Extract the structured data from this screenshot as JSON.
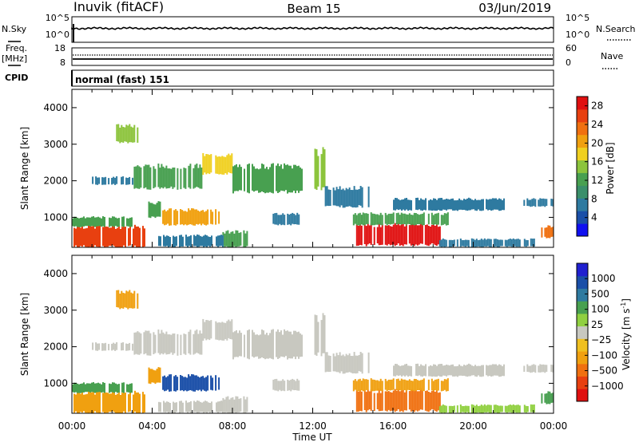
{
  "header": {
    "station": "Inuvik (fitACF)",
    "beam": "Beam 15",
    "date": "03/Jun/2019"
  },
  "params": {
    "nsky_label": "N.Sky",
    "nsky_ticks": [
      "10^5",
      "10^0"
    ],
    "nsearch_label": "N.Search",
    "nsearch_ticks": [
      "10^5",
      "10^0"
    ],
    "freq_label_1": "Freq.",
    "freq_label_2": "[MHz]",
    "freq_ticks": [
      "18",
      "8"
    ],
    "nave_label": "Nave",
    "nave_ticks": [
      "60",
      "0"
    ],
    "cpid_label": "CPID",
    "cpid_value": "normal (fast) 151"
  },
  "colors": {
    "power_scale": [
      "#1010f0",
      "#1a4fa8",
      "#2e7aa0",
      "#3a8f6a",
      "#48a050",
      "#8cc43c",
      "#f0d020",
      "#f0a010",
      "#f07010",
      "#e84010",
      "#e01010"
    ],
    "velocity_scale": [
      "#e01010",
      "#e84010",
      "#f07010",
      "#f0a010",
      "#f0c020",
      "#c8c8c0",
      "#90d040",
      "#48a050",
      "#2e7aa0",
      "#1a4fa8",
      "#2020d0"
    ],
    "ground_scatter": "#c8c8c0"
  },
  "chart_data": [
    {
      "type": "heatmap",
      "panel": "power",
      "xlabel": "Time UT",
      "ylabel": "Slant Range [km]",
      "x_ticks": [
        "00:00",
        "04:00",
        "08:00",
        "12:00",
        "16:00",
        "20:00",
        "00:00"
      ],
      "x_range_hours": [
        0,
        24
      ],
      "y_ticks": [
        1000,
        2000,
        3000,
        4000
      ],
      "ylim": [
        180,
        4500
      ],
      "colorbar": {
        "label": "Power [dB]",
        "ticks": [
          4,
          8,
          12,
          16,
          20,
          24,
          28
        ],
        "range": [
          0,
          30
        ]
      },
      "regions": [
        {
          "t0": 0.0,
          "t1": 3.6,
          "r0": 200,
          "r1": 750,
          "level": 27
        },
        {
          "t0": 0.0,
          "t1": 3.0,
          "r0": 750,
          "r1": 1000,
          "level": 13
        },
        {
          "t0": 2.2,
          "t1": 3.3,
          "r0": 3050,
          "r1": 3500,
          "level": 15
        },
        {
          "t0": 1.0,
          "t1": 3.0,
          "r0": 1900,
          "r1": 2100,
          "level": 7
        },
        {
          "t0": 3.0,
          "t1": 6.5,
          "r0": 1800,
          "r1": 2400,
          "level": 13
        },
        {
          "t0": 6.5,
          "t1": 8.0,
          "r0": 2200,
          "r1": 2700,
          "level": 18
        },
        {
          "t0": 8.0,
          "t1": 11.5,
          "r0": 1700,
          "r1": 2400,
          "level": 11
        },
        {
          "t0": 4.5,
          "t1": 7.3,
          "r0": 800,
          "r1": 1200,
          "level": 21
        },
        {
          "t0": 3.8,
          "t1": 4.5,
          "r0": 1000,
          "r1": 1400,
          "level": 12
        },
        {
          "t0": 7.5,
          "t1": 8.7,
          "r0": 200,
          "r1": 600,
          "level": 13
        },
        {
          "t0": 4.3,
          "t1": 7.5,
          "r0": 200,
          "r1": 500,
          "level": 8
        },
        {
          "t0": 10.0,
          "t1": 11.3,
          "r0": 800,
          "r1": 1100,
          "level": 7
        },
        {
          "t0": 12.0,
          "t1": 12.6,
          "r0": 1800,
          "r1": 2800,
          "level": 16
        },
        {
          "t0": 12.6,
          "t1": 14.8,
          "r0": 1300,
          "r1": 1800,
          "level": 7
        },
        {
          "t0": 14.0,
          "t1": 18.3,
          "r0": 250,
          "r1": 800,
          "level": 28
        },
        {
          "t0": 14.0,
          "t1": 18.8,
          "r0": 800,
          "r1": 1100,
          "level": 13
        },
        {
          "t0": 16.0,
          "t1": 21.5,
          "r0": 1200,
          "r1": 1500,
          "level": 8
        },
        {
          "t0": 18.3,
          "t1": 23.0,
          "r0": 200,
          "r1": 400,
          "level": 7
        },
        {
          "t0": 23.3,
          "t1": 24.0,
          "r0": 450,
          "r1": 750,
          "level": 22
        },
        {
          "t0": 22.5,
          "t1": 24.0,
          "r0": 1300,
          "r1": 1500,
          "level": 7
        }
      ]
    },
    {
      "type": "heatmap",
      "panel": "velocity",
      "xlabel": "Time UT",
      "ylabel": "Slant Range [km]",
      "x_ticks": [
        "00:00",
        "04:00",
        "08:00",
        "12:00",
        "16:00",
        "20:00",
        "00:00"
      ],
      "x_range_hours": [
        0,
        24
      ],
      "y_ticks": [
        1000,
        2000,
        3000,
        4000
      ],
      "ylim": [
        180,
        4500
      ],
      "colorbar": {
        "label": "Velocity [m s^-1]",
        "ticks": [
          "1000",
          "500",
          "100",
          "25",
          "−25",
          "−100",
          "−500",
          "−1000"
        ]
      },
      "regions": [
        {
          "t0": 0.0,
          "t1": 3.6,
          "r0": 200,
          "r1": 750,
          "level": "-100"
        },
        {
          "t0": 0.0,
          "t1": 3.0,
          "r0": 750,
          "r1": 1000,
          "level": "100"
        },
        {
          "t0": 2.2,
          "t1": 3.3,
          "r0": 3050,
          "r1": 3500,
          "level": "-100"
        },
        {
          "t0": 1.0,
          "t1": 3.0,
          "r0": 1900,
          "r1": 2100,
          "level": "gs"
        },
        {
          "t0": 3.0,
          "t1": 6.5,
          "r0": 1800,
          "r1": 2400,
          "level": "gs"
        },
        {
          "t0": 6.5,
          "t1": 8.0,
          "r0": 2200,
          "r1": 2700,
          "level": "gs"
        },
        {
          "t0": 8.0,
          "t1": 11.5,
          "r0": 1700,
          "r1": 2400,
          "level": "gs"
        },
        {
          "t0": 4.5,
          "t1": 7.3,
          "r0": 800,
          "r1": 1200,
          "level": "500"
        },
        {
          "t0": 3.8,
          "t1": 4.5,
          "r0": 1000,
          "r1": 1400,
          "level": "-100"
        },
        {
          "t0": 7.5,
          "t1": 8.7,
          "r0": 200,
          "r1": 600,
          "level": "gs"
        },
        {
          "t0": 4.3,
          "t1": 7.5,
          "r0": 200,
          "r1": 500,
          "level": "gs"
        },
        {
          "t0": 10.0,
          "t1": 11.3,
          "r0": 800,
          "r1": 1100,
          "level": "gs"
        },
        {
          "t0": 12.0,
          "t1": 12.6,
          "r0": 1800,
          "r1": 2800,
          "level": "gs"
        },
        {
          "t0": 12.6,
          "t1": 14.8,
          "r0": 1300,
          "r1": 1800,
          "level": "gs"
        },
        {
          "t0": 14.0,
          "t1": 18.3,
          "r0": 250,
          "r1": 800,
          "level": "-500"
        },
        {
          "t0": 14.0,
          "t1": 18.8,
          "r0": 800,
          "r1": 1100,
          "level": "-100"
        },
        {
          "t0": 16.0,
          "t1": 21.5,
          "r0": 1200,
          "r1": 1500,
          "level": "gs"
        },
        {
          "t0": 18.3,
          "t1": 23.0,
          "r0": 200,
          "r1": 400,
          "level": "25"
        },
        {
          "t0": 23.3,
          "t1": 24.0,
          "r0": 450,
          "r1": 750,
          "level": "100"
        },
        {
          "t0": 22.5,
          "t1": 24.0,
          "r0": 1300,
          "r1": 1500,
          "level": "gs"
        }
      ]
    }
  ]
}
